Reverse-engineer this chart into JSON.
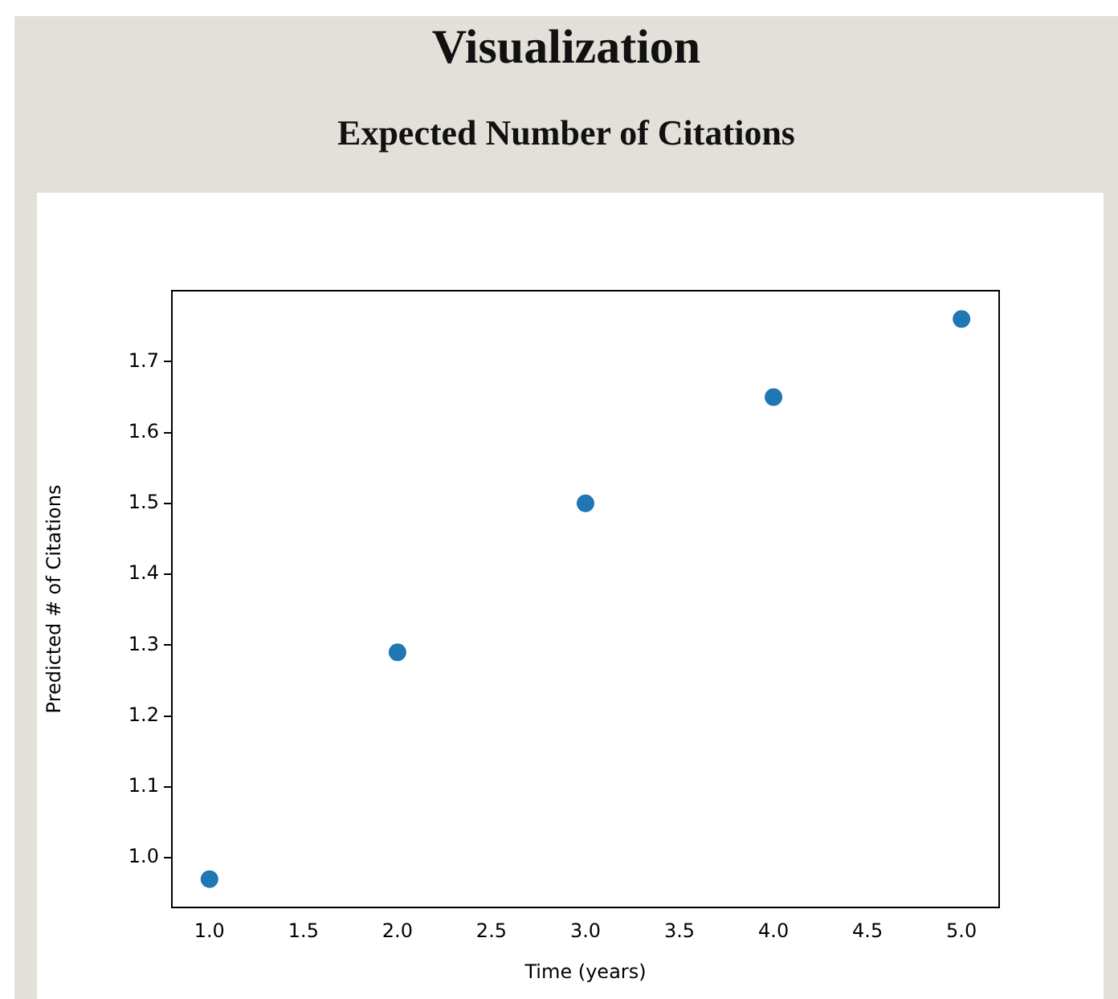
{
  "chart_data": {
    "type": "scatter",
    "title": "Visualization",
    "subtitle": "Expected Number of Citations",
    "xlabel": "Time (years)",
    "ylabel": "Predicted # of Citations",
    "x": [
      1,
      2,
      3,
      4,
      5
    ],
    "series": [
      {
        "color": "#1f77b4",
        "values": [
          0.97,
          1.29,
          1.5,
          1.65,
          1.76
        ]
      }
    ],
    "xlim": [
      0.8,
      5.2
    ],
    "xticks": [
      {
        "value": 1,
        "label": "1.0"
      },
      {
        "value": 1.5,
        "label": "1.5"
      },
      {
        "value": 2,
        "label": "2.0"
      },
      {
        "value": 2.5,
        "label": "2.5"
      },
      {
        "value": 3,
        "label": "3.0"
      },
      {
        "value": 3.5,
        "label": "3.5"
      },
      {
        "value": 4,
        "label": "4.0"
      },
      {
        "value": 4.5,
        "label": "4.5"
      },
      {
        "value": 5,
        "label": "5.0"
      }
    ],
    "ylim": [
      0.93,
      1.8
    ],
    "yticks": [
      {
        "value": 1,
        "label": "1.0"
      },
      1.1,
      1.2,
      1.3,
      1.4,
      1.5,
      1.6,
      1.7
    ],
    "grid": false,
    "legend": false,
    "marker": "circle"
  }
}
